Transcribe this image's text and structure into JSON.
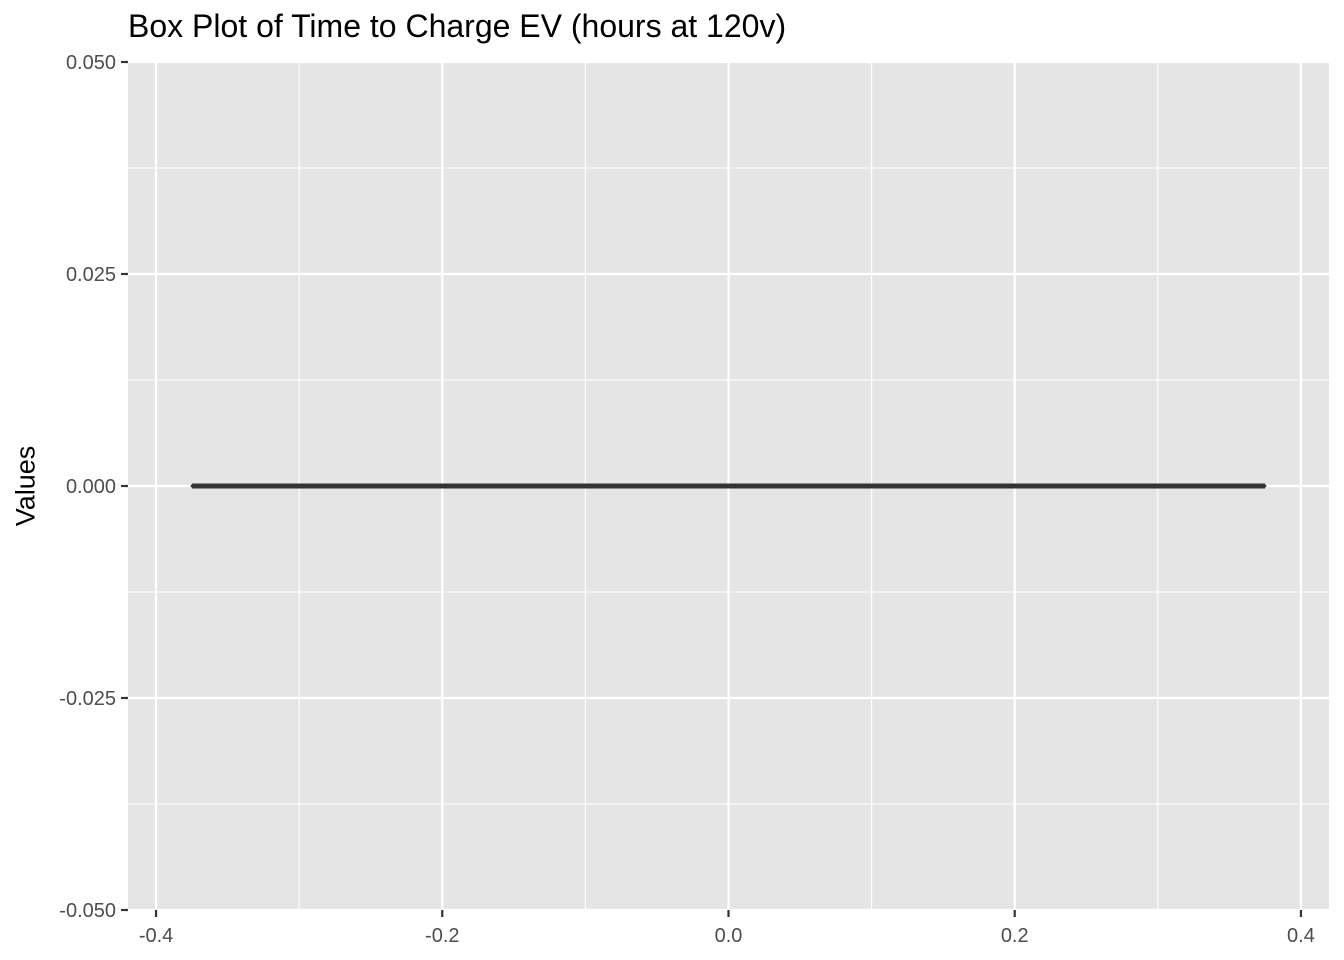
{
  "chart_data": {
    "type": "box",
    "title": "Box Plot of Time to Charge EV (hours at 120v)",
    "xlabel": "",
    "ylabel": "Values",
    "xlim": [
      -0.4,
      0.4
    ],
    "ylim": [
      -0.05,
      0.05
    ],
    "x_ticks": [
      -0.4,
      -0.2,
      0.0,
      0.2,
      0.4
    ],
    "x_tick_labels": [
      "-0.4",
      "-0.2",
      "0.0",
      "0.2",
      "0.4"
    ],
    "y_ticks": [
      -0.05,
      -0.025,
      0.0,
      0.025,
      0.05
    ],
    "y_tick_labels": [
      "-0.050",
      "-0.025",
      "0.000",
      "0.025",
      "0.050"
    ],
    "boxes": [
      {
        "x_min": -0.375,
        "x_max": 0.375,
        "min": 0,
        "q1": 0,
        "median": 0,
        "q3": 0,
        "max": 0
      }
    ],
    "grid": true,
    "colors": {
      "panel": "#e5e5e5",
      "grid": "#ffffff",
      "box_line": "#333333"
    }
  }
}
